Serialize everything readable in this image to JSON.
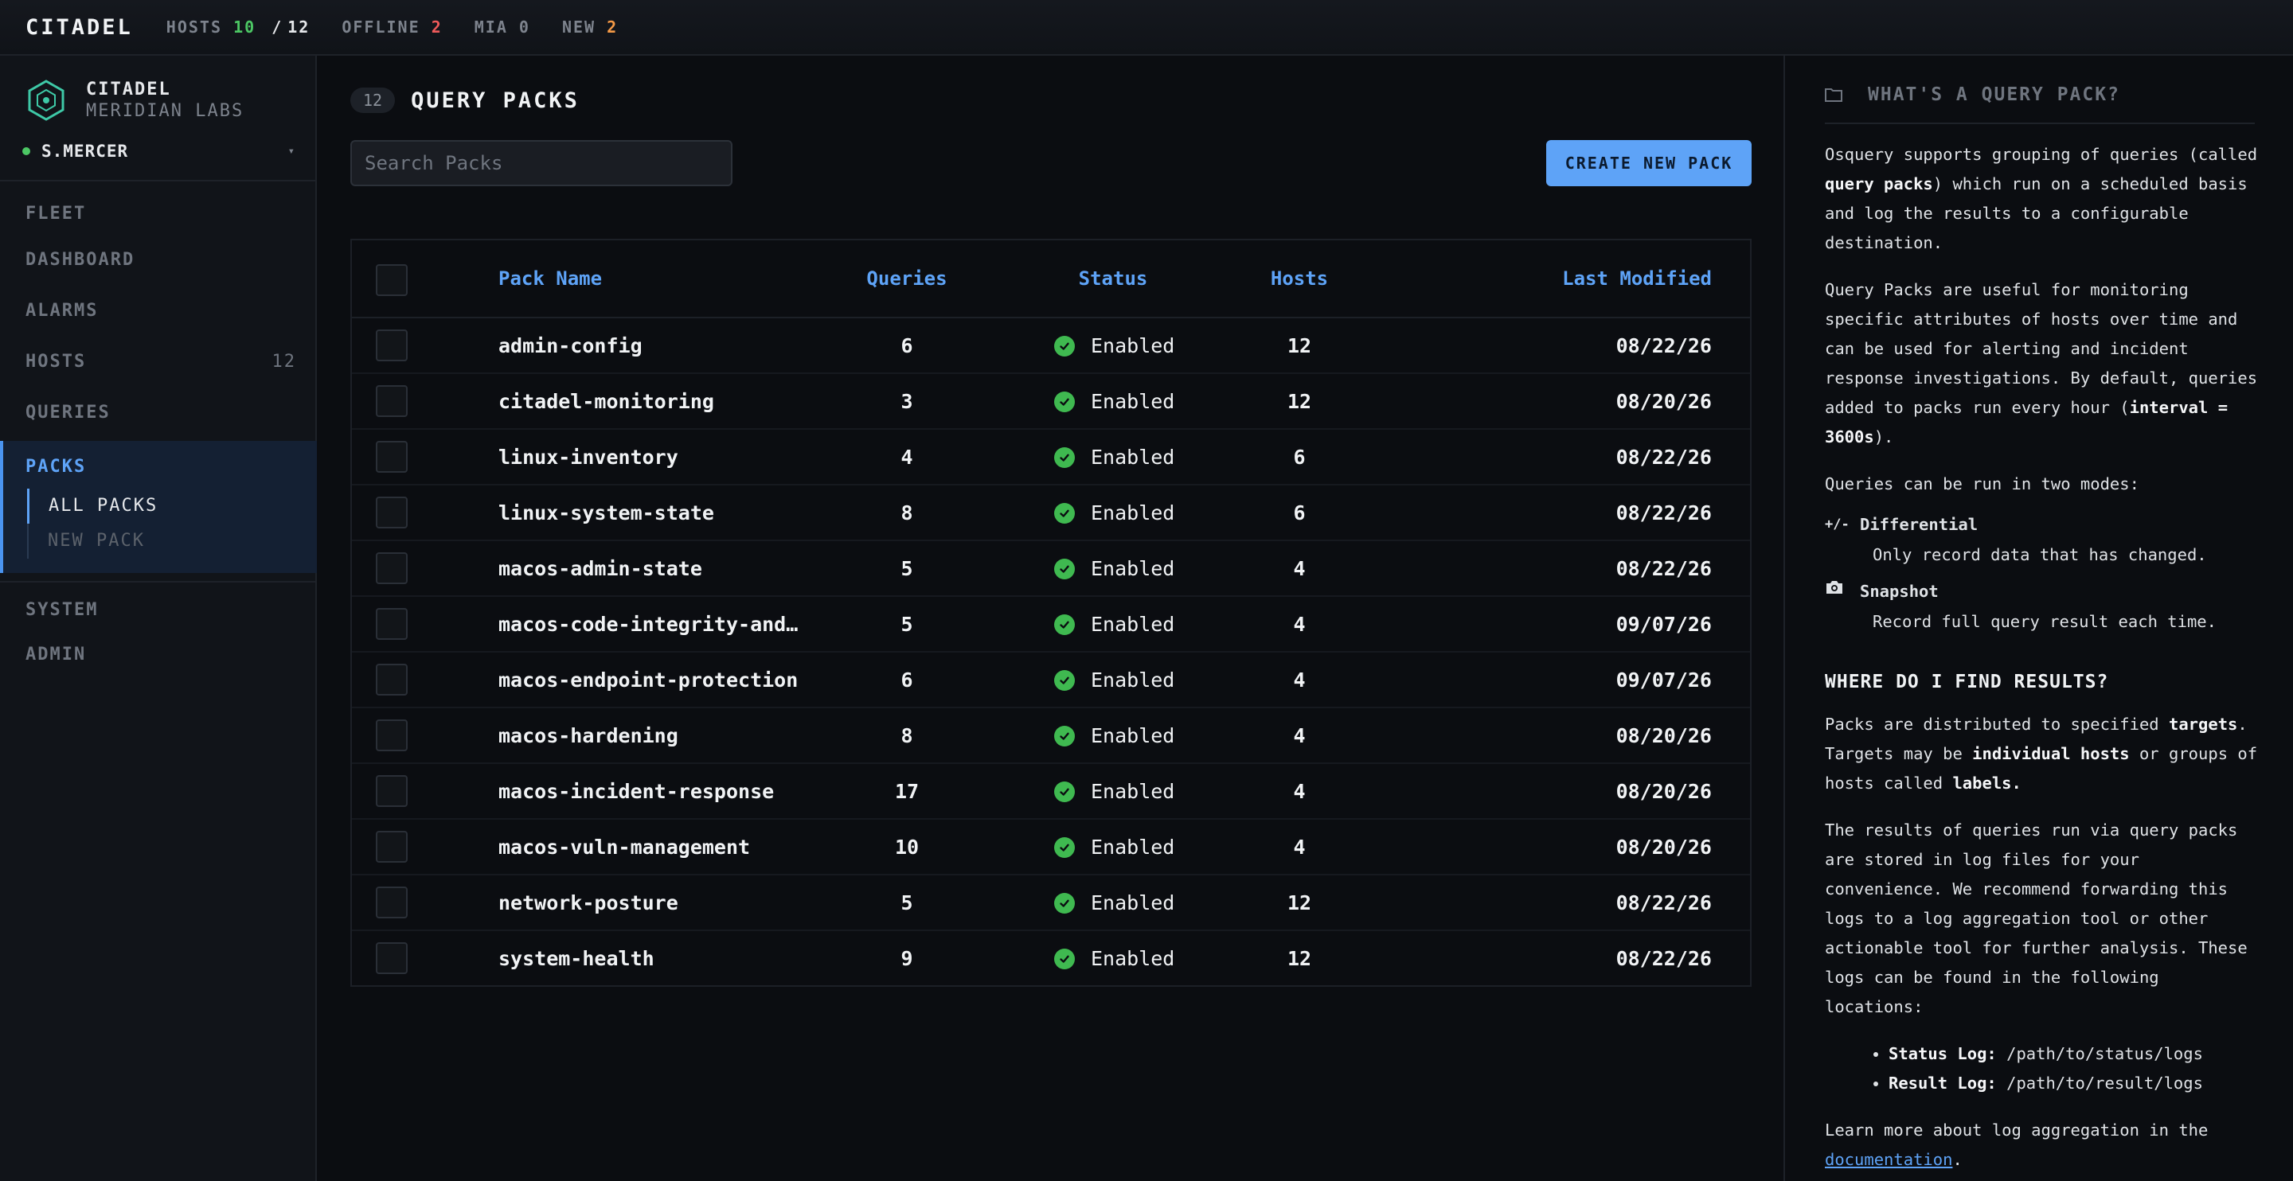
{
  "topbar": {
    "brand": "CITADEL",
    "hosts_label": "HOSTS",
    "hosts_online": "10",
    "hosts_sep": "/",
    "hosts_total": "12",
    "offline_label": "OFFLINE",
    "offline_count": "2",
    "mia_label": "MIA",
    "mia_count": "0",
    "new_label": "NEW",
    "new_count": "2"
  },
  "sidebar": {
    "org_name": "CITADEL",
    "org_sub": "MERIDIAN LABS",
    "user": "S.MERCER",
    "caret": "▾",
    "nav": {
      "fleet": "FLEET",
      "dashboard": "DASHBOARD",
      "alarms": "ALARMS",
      "hosts": "HOSTS",
      "hosts_count": "12",
      "queries": "QUERIES",
      "packs": "PACKS",
      "all_packs": "ALL PACKS",
      "new_pack": "NEW PACK",
      "system": "SYSTEM",
      "admin": "ADMIN"
    }
  },
  "main": {
    "count": "12",
    "title": "QUERY PACKS",
    "search_placeholder": "Search Packs",
    "create_label": "CREATE NEW PACK",
    "columns": {
      "name": "Pack Name",
      "queries": "Queries",
      "status": "Status",
      "hosts": "Hosts",
      "modified": "Last Modified"
    },
    "rows": [
      {
        "name": "admin-config",
        "queries": "6",
        "status": "Enabled",
        "hosts": "12",
        "modified": "08/22/26"
      },
      {
        "name": "citadel-monitoring",
        "queries": "3",
        "status": "Enabled",
        "hosts": "12",
        "modified": "08/20/26"
      },
      {
        "name": "linux-inventory",
        "queries": "4",
        "status": "Enabled",
        "hosts": "6",
        "modified": "08/22/26"
      },
      {
        "name": "linux-system-state",
        "queries": "8",
        "status": "Enabled",
        "hosts": "6",
        "modified": "08/22/26"
      },
      {
        "name": "macos-admin-state",
        "queries": "5",
        "status": "Enabled",
        "hosts": "4",
        "modified": "08/22/26"
      },
      {
        "name": "macos-code-integrity-and-…",
        "queries": "5",
        "status": "Enabled",
        "hosts": "4",
        "modified": "09/07/26"
      },
      {
        "name": "macos-endpoint-protection",
        "queries": "6",
        "status": "Enabled",
        "hosts": "4",
        "modified": "09/07/26"
      },
      {
        "name": "macos-hardening",
        "queries": "8",
        "status": "Enabled",
        "hosts": "4",
        "modified": "08/20/26"
      },
      {
        "name": "macos-incident-response",
        "queries": "17",
        "status": "Enabled",
        "hosts": "4",
        "modified": "08/20/26"
      },
      {
        "name": "macos-vuln-management",
        "queries": "10",
        "status": "Enabled",
        "hosts": "4",
        "modified": "08/20/26"
      },
      {
        "name": "network-posture",
        "queries": "5",
        "status": "Enabled",
        "hosts": "12",
        "modified": "08/22/26"
      },
      {
        "name": "system-health",
        "queries": "9",
        "status": "Enabled",
        "hosts": "12",
        "modified": "08/22/26"
      }
    ]
  },
  "panel": {
    "title": "WHAT'S A QUERY PACK?",
    "p1_a": "Osquery supports grouping of queries (called ",
    "p1_b": "query packs",
    "p1_c": ") which run on a scheduled basis and log the results to a configurable destination.",
    "p2_a": "Query Packs are useful for monitoring specific attributes of hosts over time and can be used for alerting and incident response investigations. By default, queries added to packs run every hour (",
    "p2_b": "interval = 3600s",
    "p2_c": ").",
    "p3": "Queries can be run in two modes:",
    "mode1_icon": "+/-",
    "mode1_name": "Differential",
    "mode1_desc": "Only record data that has changed.",
    "mode2_name": "Snapshot",
    "mode2_desc": "Record full query result each time.",
    "section2": "WHERE DO I FIND RESULTS?",
    "p4_a": "Packs are distributed to specified ",
    "p4_b": "targets",
    "p4_c": ". Targets may be ",
    "p4_d": "individual hosts",
    "p4_e": " or groups of hosts called ",
    "p4_f": "labels.",
    "p5": "The results of queries run via query packs are stored in log files for your convenience. We recommend forwarding this logs to a log aggregation tool or other actionable tool for further analysis. These logs can be found in the following locations:",
    "loc1_label": "Status Log:",
    "loc1_path": " /path/to/status/logs",
    "loc2_label": "Result Log:",
    "loc2_path": " /path/to/result/logs",
    "p6_a": "Learn more about log aggregation in the ",
    "p6_link": "documentation",
    "p6_b": "."
  },
  "colors": {
    "accent": "#5ea3f7",
    "success": "#3fb950",
    "danger": "#ef5a5a",
    "warning": "#f59a46",
    "brand_teal": "#3ec9a7"
  },
  "icons": {
    "org_logo": "hexagon-logo-icon",
    "status": "check-circle-icon",
    "snapshot": "camera-icon",
    "panel_head": "folder-icon"
  }
}
